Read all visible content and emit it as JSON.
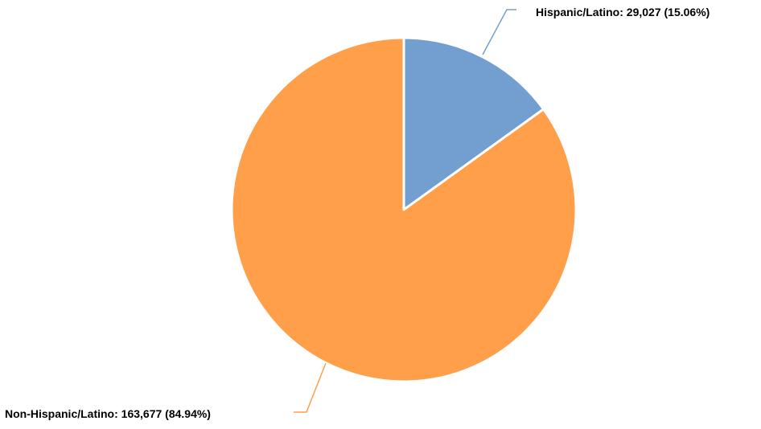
{
  "chart_data": {
    "type": "pie",
    "title": "",
    "start_angle": "12 o'clock",
    "direction": "clockwise",
    "legend": "none",
    "slices": [
      {
        "name": "Hispanic/Latino",
        "value": 29027,
        "percent": 15.06,
        "color": "#729fcf",
        "label": "Hispanic/Latino: 29,027 (15.06%)"
      },
      {
        "name": "Non-Hispanic/Latino",
        "value": 163677,
        "percent": 84.94,
        "color": "#ff9f4a",
        "label": "Non-Hispanic/Latino: 163,677 (84.94%)"
      }
    ]
  }
}
